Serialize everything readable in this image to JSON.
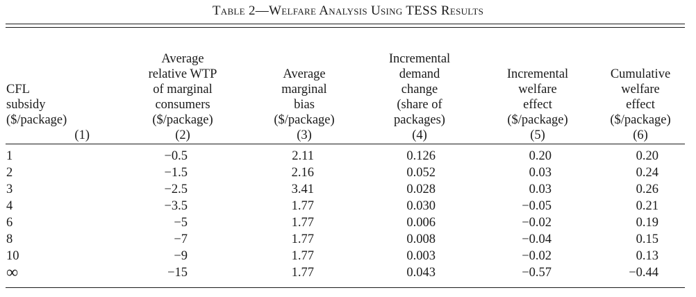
{
  "caption": "Table 2—Welfare Analysis Using TESS Results",
  "headers": [
    [
      "CFL",
      "subsidy",
      "($/package)"
    ],
    [
      "Average",
      "relative WTP",
      "of marginal",
      "consumers",
      "($/package)"
    ],
    [
      "Average",
      "marginal",
      "bias",
      "($/package)"
    ],
    [
      "Incremental",
      "demand",
      "change",
      "(share of",
      "packages)"
    ],
    [
      "Incremental",
      "welfare",
      "effect",
      "($/package)"
    ],
    [
      "Cumulative",
      "welfare",
      "effect",
      "($/package)"
    ]
  ],
  "column_numbers": [
    "(1)",
    "(2)",
    "(3)",
    "(4)",
    "(5)",
    "(6)"
  ],
  "rows": [
    [
      "1",
      "−0.5",
      "2.11",
      "0.126",
      "0.20",
      "0.20"
    ],
    [
      "2",
      "−1.5",
      "2.16",
      "0.052",
      "0.03",
      "0.24"
    ],
    [
      "3",
      "−2.5",
      "3.41",
      "0.028",
      "0.03",
      "0.26"
    ],
    [
      "4",
      "−3.5",
      "1.77",
      "0.030",
      "−0.05",
      "0.21"
    ],
    [
      "6",
      "−5",
      "1.77",
      "0.006",
      "−0.02",
      "0.19"
    ],
    [
      "8",
      "−7",
      "1.77",
      "0.008",
      "−0.04",
      "0.15"
    ],
    [
      "10",
      "−9",
      "1.77",
      "0.003",
      "−0.02",
      "0.13"
    ],
    [
      "∞",
      "−15",
      "1.77",
      "0.043",
      "−0.57",
      "−0.44"
    ]
  ]
}
